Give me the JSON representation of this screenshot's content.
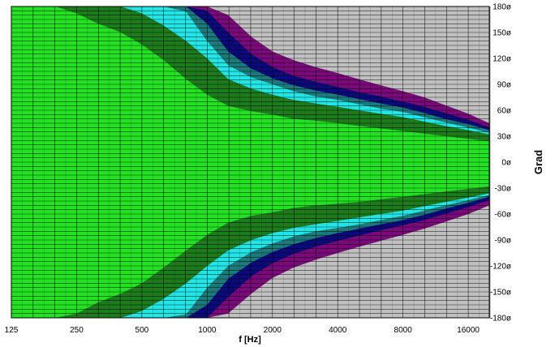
{
  "chart_data": {
    "type": "heatmap",
    "subtype": "directivity contour (polar response vs frequency)",
    "xlabel": "f [Hz]",
    "ylabel": "Grad",
    "x_scale": "log",
    "x_range_hz": [
      125,
      20000
    ],
    "y_range_deg": [
      -180,
      180
    ],
    "x_tick_labels": [
      "125",
      "250",
      "500",
      "1000",
      "2000",
      "4000",
      "8000",
      "16000"
    ],
    "y_tick_labels": [
      "180ø",
      "150ø",
      "120ø",
      "90ø",
      "60ø",
      "30ø",
      "0ø",
      "-30ø",
      "-60ø",
      "-90ø",
      "-120ø",
      "-150ø",
      "-180ø"
    ],
    "grid": true,
    "band_colors": [
      "#22e222",
      "#1d7a1d",
      "#22e6e6",
      "#1d7a7a",
      "#0a0a7a",
      "#7a0a7a",
      "#c0c0c0"
    ],
    "contours": {
      "freq_hz": [
        125,
        160,
        200,
        250,
        315,
        400,
        500,
        630,
        800,
        1000,
        1250,
        1600,
        2000,
        2500,
        3150,
        4000,
        5000,
        6300,
        8000,
        10000,
        12500,
        16000,
        20000
      ],
      "upper_deg": [
        [
          180,
          180,
          180,
          172,
          160,
          150,
          136,
          118,
          96,
          78,
          65,
          59,
          55,
          50,
          48,
          45,
          42,
          39,
          36,
          33,
          30,
          27,
          24
        ],
        [
          180,
          180,
          180,
          180,
          180,
          180,
          172,
          158,
          140,
          120,
          96,
          85,
          78,
          72,
          68,
          64,
          60,
          56,
          52,
          47,
          42,
          37,
          32
        ],
        [
          180,
          180,
          180,
          180,
          180,
          180,
          180,
          180,
          174,
          140,
          112,
          98,
          90,
          82,
          76,
          72,
          67,
          62,
          58,
          52,
          46,
          40,
          34
        ],
        [
          180,
          180,
          180,
          180,
          180,
          180,
          180,
          180,
          180,
          160,
          128,
          108,
          97,
          89,
          83,
          78,
          73,
          68,
          63,
          57,
          50,
          44,
          37
        ],
        [
          180,
          180,
          180,
          180,
          180,
          180,
          180,
          180,
          180,
          175,
          150,
          125,
          110,
          100,
          93,
          87,
          81,
          76,
          70,
          64,
          57,
          49,
          40
        ],
        [
          180,
          180,
          180,
          180,
          180,
          180,
          180,
          180,
          180,
          180,
          170,
          145,
          128,
          118,
          110,
          103,
          96,
          89,
          82,
          75,
          66,
          56,
          45
        ]
      ],
      "lower_deg": [
        [
          -180,
          -180,
          -180,
          -175,
          -162,
          -152,
          -140,
          -122,
          -102,
          -84,
          -70,
          -62,
          -58,
          -53,
          -50,
          -48,
          -46,
          -43,
          -40,
          -37,
          -34,
          -31,
          -28
        ],
        [
          -180,
          -180,
          -180,
          -180,
          -180,
          -180,
          -172,
          -158,
          -140,
          -120,
          -102,
          -90,
          -82,
          -76,
          -72,
          -68,
          -64,
          -60,
          -56,
          -51,
          -46,
          -41,
          -36
        ],
        [
          -180,
          -180,
          -180,
          -180,
          -180,
          -180,
          -180,
          -180,
          -176,
          -145,
          -120,
          -104,
          -94,
          -86,
          -80,
          -76,
          -72,
          -67,
          -62,
          -56,
          -50,
          -44,
          -38
        ],
        [
          -180,
          -180,
          -180,
          -180,
          -180,
          -180,
          -180,
          -180,
          -180,
          -165,
          -135,
          -116,
          -104,
          -95,
          -88,
          -82,
          -77,
          -72,
          -67,
          -61,
          -54,
          -47,
          -40
        ],
        [
          -180,
          -180,
          -180,
          -180,
          -180,
          -180,
          -180,
          -180,
          -180,
          -180,
          -156,
          -132,
          -117,
          -106,
          -98,
          -91,
          -85,
          -79,
          -73,
          -67,
          -60,
          -52,
          -44
        ],
        [
          -180,
          -180,
          -180,
          -180,
          -180,
          -180,
          -180,
          -180,
          -180,
          -180,
          -175,
          -152,
          -134,
          -122,
          -113,
          -105,
          -98,
          -91,
          -84,
          -77,
          -69,
          -60,
          -50
        ]
      ]
    }
  }
}
